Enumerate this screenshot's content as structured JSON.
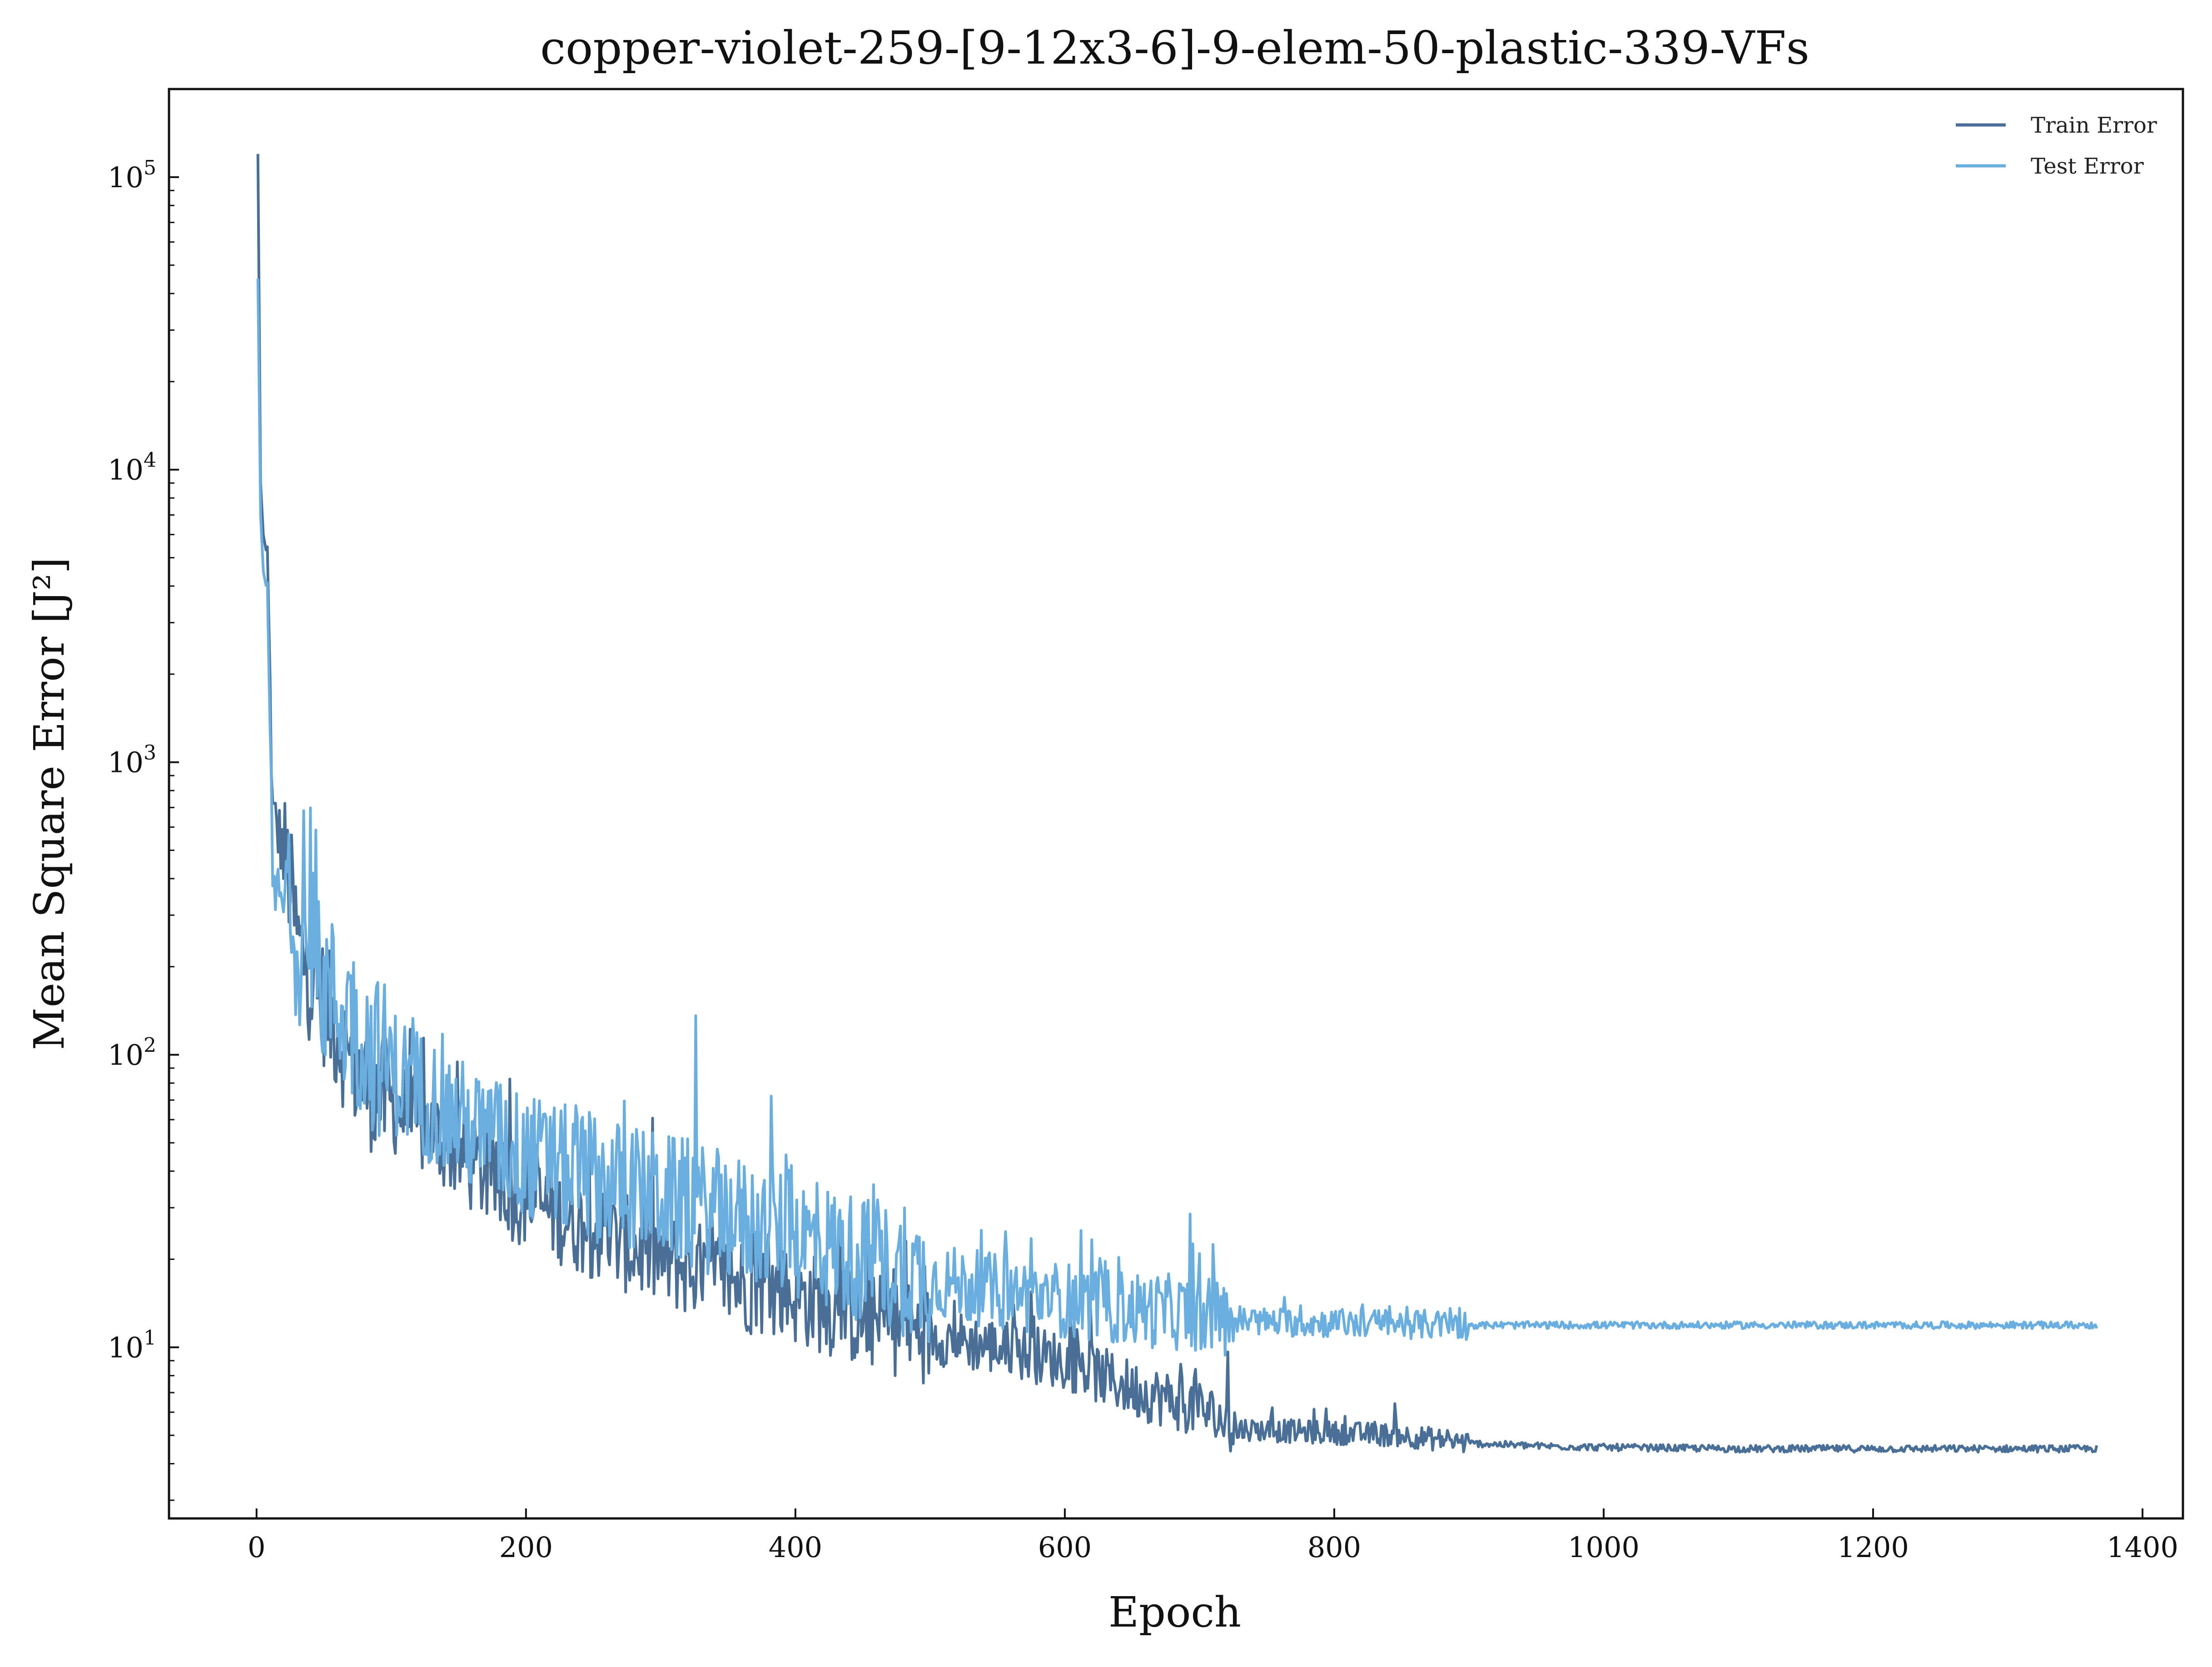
{
  "chart_data": {
    "type": "line",
    "title": "copper-violet-259-[9-12x3-6]-9-elem-50-plastic-339-VFs",
    "xlabel": "Epoch",
    "ylabel": "Mean Square Error [J²]",
    "xlim": [
      -65,
      1430
    ],
    "ylim": [
      2.6,
      200000
    ],
    "yscale": "log",
    "xticks": [
      0,
      200,
      400,
      600,
      800,
      1000,
      1200,
      1400
    ],
    "xtick_labels": [
      "0",
      "200",
      "400",
      "600",
      "800",
      "1000",
      "1200",
      "1400"
    ],
    "yticks": [
      10,
      100,
      1000,
      10000,
      100000
    ],
    "ytick_labels": [
      {
        "base": "10",
        "exp": "1"
      },
      {
        "base": "10",
        "exp": "2"
      },
      {
        "base": "10",
        "exp": "3"
      },
      {
        "base": "10",
        "exp": "4"
      },
      {
        "base": "10",
        "exp": "5"
      }
    ],
    "grid": false,
    "legend_position": "top-right",
    "series": [
      {
        "name": "Train Error",
        "color": "#4a6f96",
        "x": [
          1,
          3,
          5,
          8,
          10,
          12,
          15,
          20,
          25,
          30,
          40,
          50,
          60,
          70,
          80,
          100,
          120,
          140,
          160,
          180,
          200,
          250,
          300,
          350,
          400,
          450,
          500,
          550,
          600,
          650,
          700,
          725,
          750,
          800,
          850,
          900,
          950,
          1000,
          1100,
          1200,
          1300,
          1366
        ],
        "y": [
          120000,
          9000,
          6000,
          5000,
          1800,
          650,
          600,
          500,
          380,
          250,
          180,
          150,
          120,
          95,
          80,
          68,
          58,
          50,
          42,
          36,
          32,
          25,
          20,
          17,
          15,
          12.5,
          11,
          10,
          9,
          7.2,
          6.2,
          5.3,
          5.2,
          5.1,
          5.0,
          4.7,
          4.6,
          4.55,
          4.5,
          4.5,
          4.5,
          4.5
        ]
      },
      {
        "name": "Test Error",
        "color": "#6aaee0",
        "x": [
          1,
          3,
          5,
          8,
          10,
          12,
          15,
          20,
          25,
          30,
          40,
          50,
          60,
          70,
          80,
          100,
          120,
          140,
          160,
          180,
          200,
          250,
          300,
          350,
          400,
          450,
          500,
          550,
          600,
          650,
          700,
          725,
          750,
          800,
          850,
          900,
          950,
          1000,
          1100,
          1200,
          1300,
          1366
        ],
        "y": [
          45000,
          7000,
          4500,
          3800,
          1200,
          380,
          350,
          330,
          300,
          250,
          200,
          170,
          150,
          130,
          110,
          90,
          75,
          65,
          55,
          50,
          45,
          38,
          33,
          28,
          24,
          20,
          17,
          15.5,
          14.5,
          13.5,
          13,
          12.5,
          12.2,
          12.1,
          12.0,
          11.9,
          11.9,
          11.9,
          11.9,
          11.9,
          11.9,
          11.9
        ]
      }
    ]
  }
}
